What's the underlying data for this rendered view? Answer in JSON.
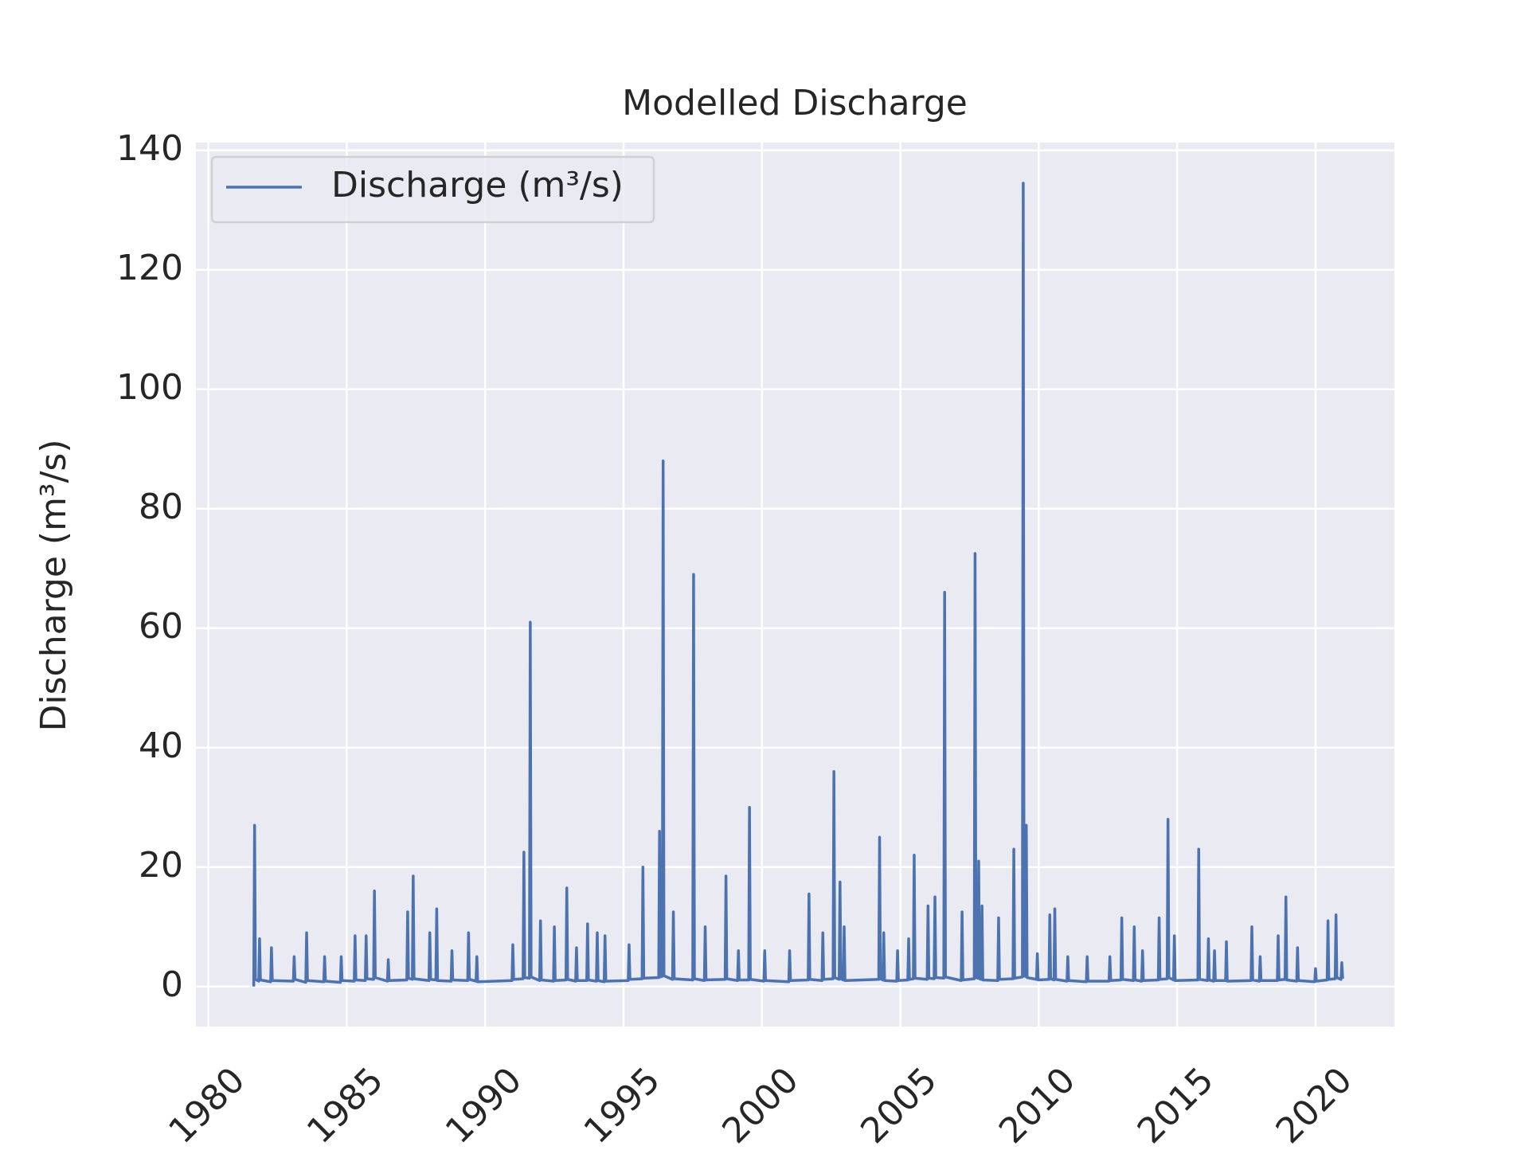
{
  "chart_data": {
    "type": "line",
    "title": "Modelled Discharge",
    "y_label": "Discharge (m³/s)",
    "x": [
      1981.64,
      1981.67,
      1981.7,
      1981.82,
      1981.85,
      1981.88,
      1982.25,
      1982.28,
      1982.31,
      1983.07,
      1983.1,
      1983.13,
      1983.52,
      1983.55,
      1983.58,
      1984.17,
      1984.2,
      1984.23,
      1984.77,
      1984.8,
      1984.83,
      1985.27,
      1985.3,
      1985.33,
      1985.67,
      1985.7,
      1985.73,
      1985.97,
      1986.0,
      1986.03,
      1986.47,
      1986.5,
      1986.53,
      1987.17,
      1987.2,
      1987.23,
      1987.37,
      1987.4,
      1987.43,
      1987.97,
      1988.0,
      1988.03,
      1988.22,
      1988.25,
      1988.28,
      1988.77,
      1988.8,
      1988.83,
      1989.37,
      1989.4,
      1989.43,
      1989.67,
      1989.7,
      1989.73,
      1990.97,
      1991.0,
      1991.03,
      1991.37,
      1991.4,
      1991.43,
      1991.6,
      1991.63,
      1991.66,
      1991.97,
      1992.0,
      1992.03,
      1992.47,
      1992.5,
      1992.53,
      1992.92,
      1992.95,
      1992.98,
      1993.27,
      1993.3,
      1993.33,
      1993.67,
      1993.7,
      1993.73,
      1994.02,
      1994.05,
      1994.08,
      1994.3,
      1994.33,
      1994.36,
      1995.17,
      1995.2,
      1995.23,
      1995.67,
      1995.7,
      1995.73,
      1996.27,
      1996.3,
      1996.33,
      1996.4,
      1996.43,
      1996.46,
      1996.77,
      1996.8,
      1996.83,
      1997.5,
      1997.53,
      1997.56,
      1997.92,
      1997.95,
      1997.98,
      1998.67,
      1998.7,
      1998.73,
      1999.12,
      1999.15,
      1999.18,
      1999.52,
      1999.55,
      1999.58,
      2000.07,
      2000.1,
      2000.13,
      2000.97,
      2001.0,
      2001.03,
      2001.67,
      2001.7,
      2001.73,
      2002.17,
      2002.2,
      2002.23,
      2002.57,
      2002.6,
      2002.63,
      2002.79,
      2002.82,
      2002.85,
      2002.94,
      2002.97,
      2003.0,
      2004.22,
      2004.25,
      2004.28,
      2004.37,
      2004.4,
      2004.43,
      2004.87,
      2004.9,
      2004.93,
      2005.27,
      2005.3,
      2005.33,
      2005.47,
      2005.5,
      2005.53,
      2005.97,
      2006.0,
      2006.03,
      2006.22,
      2006.25,
      2006.28,
      2006.57,
      2006.6,
      2006.63,
      2007.2,
      2007.23,
      2007.26,
      2007.67,
      2007.7,
      2007.73,
      2007.8,
      2007.83,
      2007.86,
      2007.92,
      2007.95,
      2007.98,
      2008.52,
      2008.55,
      2008.58,
      2009.07,
      2009.1,
      2009.13,
      2009.41,
      2009.44,
      2009.47,
      2009.52,
      2009.55,
      2009.58,
      2009.92,
      2009.95,
      2009.98,
      2010.37,
      2010.4,
      2010.43,
      2010.55,
      2010.58,
      2010.61,
      2011.02,
      2011.05,
      2011.08,
      2011.72,
      2011.75,
      2011.78,
      2012.54,
      2012.57,
      2012.6,
      2012.97,
      2013.0,
      2013.03,
      2013.42,
      2013.45,
      2013.48,
      2013.72,
      2013.75,
      2013.78,
      2014.32,
      2014.35,
      2014.38,
      2014.64,
      2014.67,
      2014.7,
      2014.87,
      2014.9,
      2014.93,
      2015.75,
      2015.78,
      2015.81,
      2016.1,
      2016.13,
      2016.16,
      2016.32,
      2016.35,
      2016.38,
      2016.75,
      2016.78,
      2016.81,
      2017.67,
      2017.7,
      2017.73,
      2017.97,
      2018.0,
      2018.03,
      2018.62,
      2018.65,
      2018.68,
      2018.9,
      2018.93,
      2018.96,
      2019.32,
      2019.35,
      2019.38,
      2019.97,
      2020.0,
      2020.03,
      2020.42,
      2020.45,
      2020.48,
      2020.71,
      2020.74,
      2020.77,
      2020.92,
      2020.95,
      2020.98
    ],
    "series": [
      {
        "name": "Discharge (m³/s)",
        "color": "#4c72b0",
        "values": [
          0,
          27,
          1.2,
          0.9,
          8,
          1.1,
          0.8,
          6.5,
          1.0,
          0.9,
          5,
          1.2,
          0.7,
          9,
          1.0,
          0.8,
          5,
          0.9,
          0.7,
          5,
          1.0,
          0.9,
          8.5,
          1.1,
          1.0,
          8.5,
          1.3,
          1.2,
          16,
          1.5,
          0.9,
          4.5,
          1.0,
          1.1,
          12.5,
          1.4,
          1.2,
          18.5,
          1.3,
          1.0,
          9,
          1.2,
          1.1,
          13,
          1.0,
          0.9,
          6,
          1.1,
          1.0,
          9,
          1.2,
          0.9,
          5,
          0.8,
          1.0,
          7,
          1.2,
          1.3,
          22.5,
          1.5,
          1.4,
          61,
          1.6,
          1.0,
          11,
          1.1,
          0.9,
          10,
          1.0,
          1.1,
          16.5,
          1.2,
          0.9,
          6.5,
          1.0,
          1.0,
          10.5,
          1.1,
          0.9,
          9,
          1.0,
          0.8,
          8.5,
          0.9,
          1.0,
          7,
          1.2,
          1.3,
          20,
          1.4,
          1.5,
          26,
          1.6,
          1.7,
          88,
          1.8,
          1.2,
          12.5,
          1.3,
          1.1,
          69,
          1.3,
          1.0,
          10,
          1.1,
          1.2,
          18.5,
          1.3,
          1.0,
          6,
          1.1,
          1.1,
          30,
          1.2,
          0.9,
          6,
          1.0,
          0.8,
          6,
          1.0,
          1.1,
          15.5,
          1.2,
          1.0,
          9,
          1.2,
          1.3,
          36,
          1.5,
          1.2,
          17.5,
          1.3,
          1.1,
          10,
          1.0,
          1.2,
          25,
          1.3,
          1.1,
          9,
          1.0,
          0.9,
          6,
          1.0,
          1.1,
          8,
          1.2,
          1.3,
          22,
          1.4,
          1.2,
          13.5,
          1.4,
          1.3,
          15,
          1.5,
          1.4,
          66,
          1.6,
          1.0,
          12.5,
          1.1,
          1.3,
          72.5,
          1.5,
          1.4,
          21,
          1.3,
          1.2,
          13.5,
          1.1,
          1.0,
          11.5,
          1.2,
          1.3,
          23,
          1.4,
          1.6,
          134.5,
          1.8,
          1.7,
          27,
          1.5,
          1.2,
          5.5,
          1.1,
          1.2,
          12,
          1.3,
          1.1,
          13,
          1.2,
          0.9,
          5,
          1.0,
          0.8,
          5,
          0.9,
          0.9,
          5,
          1.0,
          1.1,
          11.5,
          1.2,
          1.0,
          10,
          1.1,
          0.9,
          6,
          1.0,
          1.1,
          11.5,
          1.2,
          1.3,
          28,
          1.5,
          1.1,
          8.5,
          1.0,
          1.1,
          23,
          1.2,
          1.0,
          8,
          1.1,
          0.9,
          6,
          1.0,
          1.0,
          7.5,
          0.9,
          1.0,
          10,
          1.1,
          0.9,
          5,
          1.0,
          1.0,
          8.5,
          1.1,
          1.2,
          15,
          1.1,
          0.9,
          6.5,
          1.0,
          0.8,
          3,
          0.9,
          1.1,
          11,
          1.2,
          1.3,
          12,
          1.5,
          1.2,
          4,
          1.3
        ]
      }
    ],
    "xlim": [
      1979.55,
      2022.85
    ],
    "xticks": [
      1980,
      1985,
      1990,
      1995,
      2000,
      2005,
      2010,
      2015,
      2020
    ],
    "ylim": [
      -6.7,
      141.3
    ],
    "yticks": [
      0,
      20,
      40,
      60,
      80,
      100,
      120,
      140
    ],
    "grid": true,
    "legend": "upper left"
  }
}
